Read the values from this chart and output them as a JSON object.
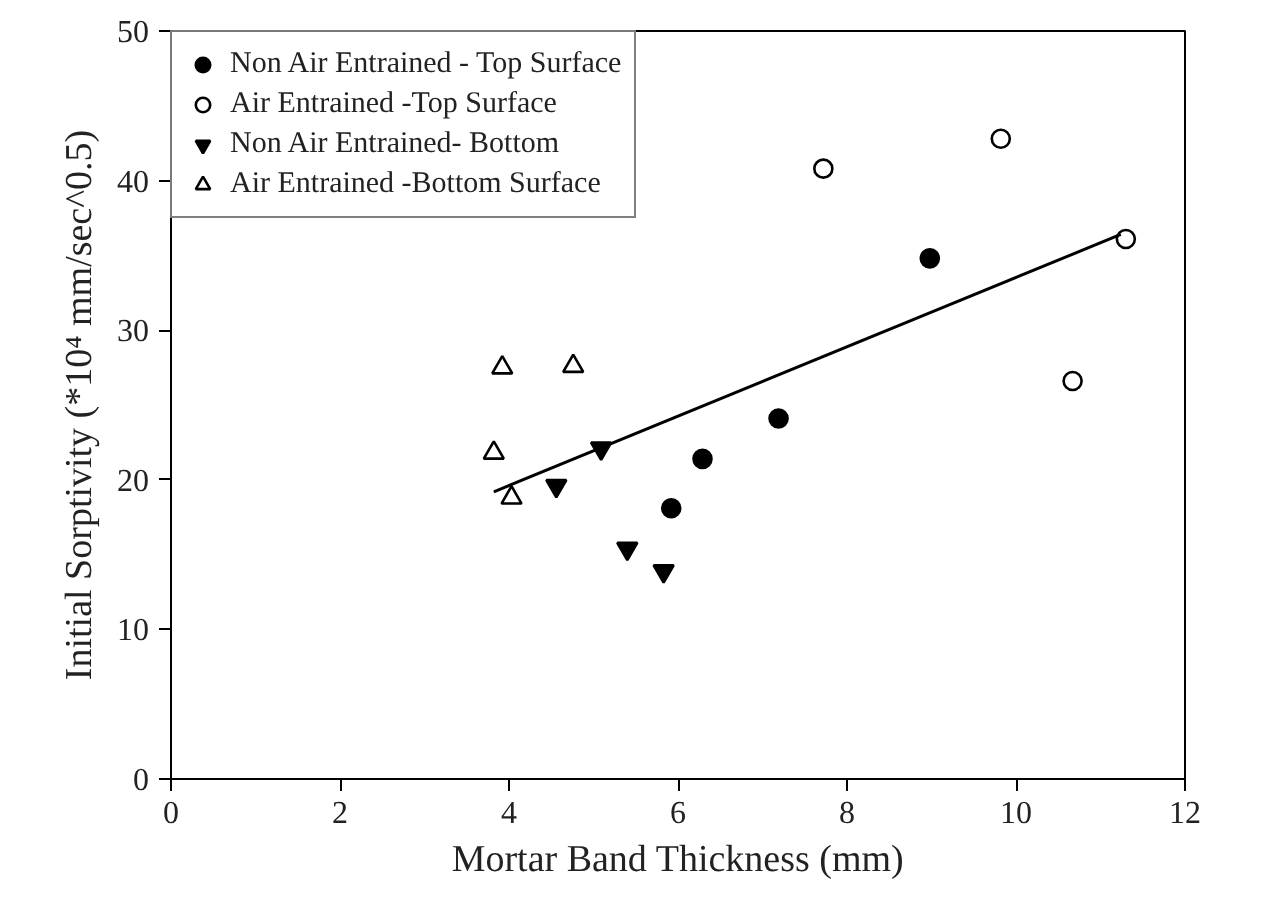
{
  "chart_data": {
    "type": "scatter",
    "xlabel": "Mortar Band Thickness (mm)",
    "ylabel": "Initial Sorptivity (*10⁴ mm/sec^0.5)",
    "xlim": [
      0,
      12
    ],
    "ylim": [
      0,
      50
    ],
    "xticks": [
      0,
      2,
      4,
      6,
      8,
      10,
      12
    ],
    "yticks": [
      0,
      10,
      20,
      30,
      40,
      50
    ],
    "grid": false,
    "legend": "top left",
    "series": [
      {
        "name": "Non Air Entrained - Top Surface",
        "color": "#000000",
        "marker": "circle",
        "x": [
          5.92,
          6.29,
          7.19,
          8.98
        ],
        "values": [
          18.1,
          21.4,
          24.1,
          34.8
        ]
      },
      {
        "name": "Air Entrained -Top Surface",
        "color": "#000000",
        "marker": "circle_open",
        "x": [
          7.72,
          9.82,
          10.67,
          11.3
        ],
        "values": [
          40.8,
          42.8,
          26.6,
          36.1
        ]
      },
      {
        "name": "Non Air Entrained- Bottom",
        "color": "#000000",
        "marker": "triangle_down",
        "x": [
          4.56,
          5.09,
          5.4,
          5.83
        ],
        "values": [
          19.6,
          22.1,
          15.4,
          13.9
        ]
      },
      {
        "name": "Air Entrained -Bottom Surface",
        "color": "#000000",
        "marker": "triangle_open",
        "x": [
          3.82,
          3.92,
          4.03,
          4.76
        ],
        "values": [
          21.8,
          27.5,
          18.8,
          27.6
        ]
      },
      {
        "type": "line",
        "color": "#000000",
        "x": [
          3.82,
          11.24
        ],
        "values": [
          19.2,
          36.4
        ]
      }
    ]
  }
}
